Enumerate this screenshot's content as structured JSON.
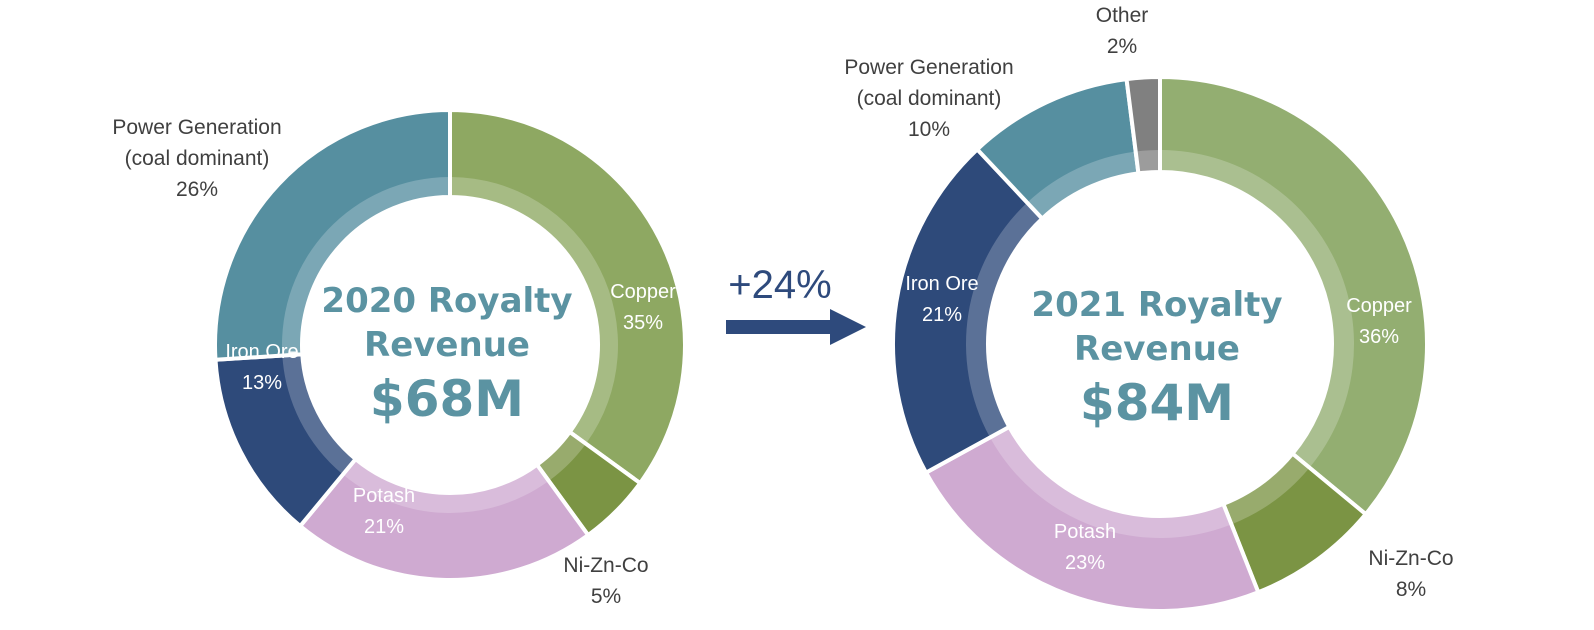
{
  "chart_data": [
    {
      "type": "donut",
      "center": {
        "title_line1": "2020 Royalty",
        "title_line2": "Revenue",
        "amount": "$68M"
      },
      "categories": [
        "Copper",
        "Ni-Zn-Co",
        "Potash",
        "Iron Ore",
        "Power Generation (coal dominant)"
      ],
      "values": [
        35,
        5,
        21,
        13,
        26
      ],
      "unit": "%",
      "colors": [
        "#8ea862",
        "#7b9444",
        "#cfaad1",
        "#2e4a7a",
        "#568fa0"
      ],
      "labels": [
        {
          "lines": [
            "Copper",
            "35%"
          ],
          "style": "inside"
        },
        {
          "lines": [
            "Ni-Zn-Co",
            "5%"
          ],
          "style": "outside"
        },
        {
          "lines": [
            "Potash",
            "21%"
          ],
          "style": "inside"
        },
        {
          "lines": [
            "Iron Ore",
            "13%"
          ],
          "style": "inside"
        },
        {
          "lines": [
            "Power Generation",
            "(coal dominant)",
            "26%"
          ],
          "style": "outside"
        }
      ]
    },
    {
      "type": "donut",
      "center": {
        "title_line1": "2021 Royalty",
        "title_line2": "Revenue",
        "amount": "$84M"
      },
      "categories": [
        "Copper",
        "Ni-Zn-Co",
        "Potash",
        "Iron Ore",
        "Power Generation (coal dominant)",
        "Other"
      ],
      "values": [
        36,
        8,
        23,
        21,
        10,
        2
      ],
      "unit": "%",
      "colors": [
        "#93ae71",
        "#7b9444",
        "#cfaad1",
        "#2e4a7a",
        "#568fa0",
        "#808080"
      ],
      "labels": [
        {
          "lines": [
            "Copper",
            "36%"
          ],
          "style": "inside"
        },
        {
          "lines": [
            "Ni-Zn-Co",
            "8%"
          ],
          "style": "outside"
        },
        {
          "lines": [
            "Potash",
            "23%"
          ],
          "style": "inside"
        },
        {
          "lines": [
            "Iron Ore",
            "21%"
          ],
          "style": "inside"
        },
        {
          "lines": [
            "Power Generation",
            "(coal dominant)",
            "10%"
          ],
          "style": "outside"
        },
        {
          "lines": [
            "Other",
            "2%"
          ],
          "style": "outside"
        }
      ]
    }
  ],
  "growth": {
    "label": "+24%",
    "color": "#2e4a7c"
  }
}
